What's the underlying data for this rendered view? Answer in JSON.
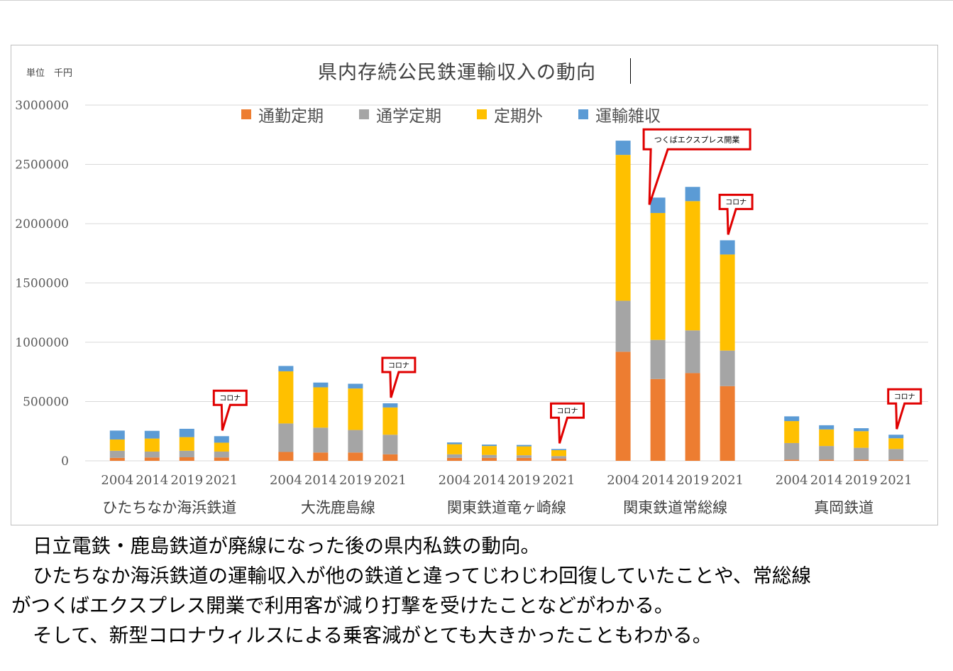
{
  "chart_data": {
    "type": "bar",
    "stacked": true,
    "title": "県内存続公民鉄運輸収入の動向",
    "unit_label": "単位　千円",
    "ylim": [
      0,
      3000000
    ],
    "yticks": [
      0,
      500000,
      1000000,
      1500000,
      2000000,
      2500000,
      3000000
    ],
    "grid": true,
    "legend_position": "top",
    "series": [
      {
        "name": "通勤定期",
        "color": "#ED7D31"
      },
      {
        "name": "通学定期",
        "color": "#A5A5A5"
      },
      {
        "name": "定期外",
        "color": "#FFC000"
      },
      {
        "name": "運輸雑収",
        "color": "#5B9BD5"
      }
    ],
    "groups": [
      {
        "name": "ひたちなか海浜鉄道",
        "bars": [
          {
            "year": "2004",
            "values": [
              25000,
              60000,
              95000,
              75000
            ]
          },
          {
            "year": "2014",
            "values": [
              28000,
              50000,
              110000,
              65000
            ]
          },
          {
            "year": "2019",
            "values": [
              30000,
              55000,
              115000,
              70000
            ]
          },
          {
            "year": "2021",
            "values": [
              28000,
              50000,
              75000,
              55000
            ]
          }
        ]
      },
      {
        "name": "大洗鹿島線",
        "bars": [
          {
            "year": "2004",
            "values": [
              75000,
              240000,
              440000,
              45000
            ]
          },
          {
            "year": "2014",
            "values": [
              70000,
              210000,
              340000,
              40000
            ]
          },
          {
            "year": "2019",
            "values": [
              70000,
              190000,
              350000,
              40000
            ]
          },
          {
            "year": "2021",
            "values": [
              55000,
              165000,
              230000,
              35000
            ]
          }
        ]
      },
      {
        "name": "関東鉄道竜ヶ崎線",
        "bars": [
          {
            "year": "2004",
            "values": [
              25000,
              30000,
              85000,
              15000
            ]
          },
          {
            "year": "2014",
            "values": [
              25000,
              25000,
              75000,
              12000
            ]
          },
          {
            "year": "2019",
            "values": [
              25000,
              22000,
              75000,
              12000
            ]
          },
          {
            "year": "2021",
            "values": [
              20000,
              20000,
              50000,
              10000
            ]
          }
        ]
      },
      {
        "name": "関東鉄道常総線",
        "bars": [
          {
            "year": "2004",
            "values": [
              920000,
              430000,
              1230000,
              120000
            ]
          },
          {
            "year": "2014",
            "values": [
              690000,
              330000,
              1070000,
              130000
            ]
          },
          {
            "year": "2019",
            "values": [
              740000,
              360000,
              1090000,
              120000
            ]
          },
          {
            "year": "2021",
            "values": [
              630000,
              300000,
              810000,
              120000
            ]
          }
        ]
      },
      {
        "name": "真岡鉄道",
        "bars": [
          {
            "year": "2004",
            "values": [
              10000,
              140000,
              185000,
              40000
            ]
          },
          {
            "year": "2014",
            "values": [
              10000,
              115000,
              140000,
              35000
            ]
          },
          {
            "year": "2019",
            "values": [
              10000,
              100000,
              140000,
              25000
            ]
          },
          {
            "year": "2021",
            "values": [
              10000,
              90000,
              90000,
              30000
            ]
          }
        ]
      }
    ],
    "annotations": [
      {
        "text": "コロナ",
        "group": 0,
        "bar": 3
      },
      {
        "text": "コロナ",
        "group": 1,
        "bar": 3
      },
      {
        "text": "コロナ",
        "group": 2,
        "bar": 3
      },
      {
        "text": "コロナ",
        "group": 3,
        "bar": 3
      },
      {
        "text": "コロナ",
        "group": 4,
        "bar": 3
      },
      {
        "text": "つくばエクスプレス開業",
        "group": 3,
        "bar": 1
      }
    ]
  },
  "body_text": [
    "日立電鉄・鹿島鉄道が廃線になった後の県内私鉄の動向。",
    "ひたちなか海浜鉄道の運輸収入が他の鉄道と違ってじわじわ回復していたことや、常総線",
    "がつくばエクスプレス開業で利用客が減り打撃を受けたことなどがわかる。",
    "そして、新型コロナウィルスによる乗客減がとても大きかったこともわかる。"
  ]
}
